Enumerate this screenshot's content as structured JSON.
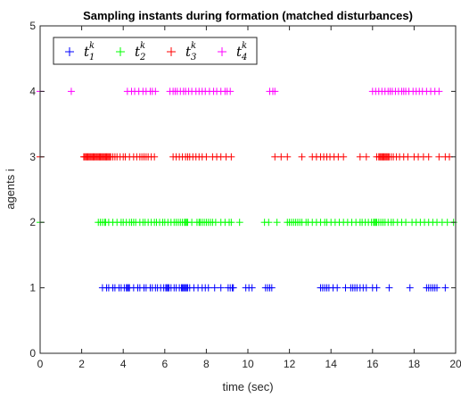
{
  "chart_data": {
    "type": "scatter",
    "title": "Sampling instants during formation (matched disturbances)",
    "xlabel": "time (sec)",
    "ylabel": "agents i",
    "xlim": [
      0,
      20
    ],
    "ylim": [
      0,
      5
    ],
    "xticks": [
      "0",
      "2",
      "4",
      "6",
      "8",
      "10",
      "12",
      "14",
      "16",
      "18",
      "20"
    ],
    "yticks": [
      "0",
      "1",
      "2",
      "3",
      "4",
      "5"
    ],
    "grid": false,
    "legend_position": "top-left",
    "marker": "+",
    "series": [
      {
        "name": "t_1^k",
        "label_base": "t",
        "label_sub": "1",
        "label_sup": "k",
        "color": "#0000ff",
        "y": 1,
        "x": [
          3.0,
          3.2,
          3.3,
          3.5,
          3.6,
          3.8,
          3.9,
          4.05,
          4.15,
          4.2,
          4.25,
          4.3,
          4.5,
          4.7,
          4.8,
          5.0,
          5.1,
          5.3,
          5.4,
          5.55,
          5.65,
          5.8,
          5.95,
          6.05,
          6.1,
          6.15,
          6.2,
          6.3,
          6.45,
          6.55,
          6.7,
          6.8,
          6.85,
          6.9,
          6.95,
          7.0,
          7.05,
          7.1,
          7.2,
          7.4,
          7.6,
          7.8,
          7.95,
          8.1,
          8.4,
          8.7,
          9.05,
          9.15,
          9.25,
          9.3,
          9.9,
          10.05,
          10.2,
          10.85,
          10.95,
          11.05,
          11.15,
          13.5,
          13.6,
          13.7,
          13.8,
          13.9,
          14.1,
          14.3,
          14.7,
          14.95,
          15.05,
          15.15,
          15.25,
          15.4,
          15.55,
          15.7,
          16.0,
          16.2,
          16.8,
          17.8,
          18.6,
          18.7,
          18.8,
          18.9,
          19.0,
          19.1,
          19.5
        ]
      },
      {
        "name": "t_2^k",
        "label_base": "t",
        "label_sub": "2",
        "label_sup": "k",
        "color": "#00ff00",
        "y": 2,
        "x": [
          0.0,
          2.8,
          2.9,
          3.0,
          3.1,
          3.15,
          3.3,
          3.5,
          3.7,
          3.9,
          4.0,
          4.15,
          4.3,
          4.4,
          4.5,
          4.6,
          4.8,
          4.95,
          5.05,
          5.2,
          5.35,
          5.5,
          5.6,
          5.75,
          5.9,
          6.0,
          6.15,
          6.3,
          6.45,
          6.55,
          6.65,
          6.75,
          6.85,
          6.95,
          7.0,
          7.05,
          7.1,
          7.3,
          7.55,
          7.65,
          7.7,
          7.8,
          7.9,
          8.0,
          8.1,
          8.2,
          8.3,
          8.45,
          8.7,
          8.9,
          9.1,
          9.2,
          9.6,
          10.8,
          11.0,
          11.4,
          11.9,
          12.0,
          12.1,
          12.2,
          12.3,
          12.4,
          12.5,
          12.6,
          12.8,
          12.9,
          13.1,
          13.3,
          13.5,
          13.7,
          13.8,
          14.0,
          14.2,
          14.4,
          14.6,
          14.8,
          15.0,
          15.2,
          15.4,
          15.5,
          15.65,
          15.8,
          15.95,
          16.05,
          16.1,
          16.15,
          16.2,
          16.3,
          16.4,
          16.5,
          16.6,
          16.75,
          16.9,
          17.0,
          17.2,
          17.4,
          17.6,
          17.9,
          18.1,
          18.3,
          18.5,
          18.7,
          18.9,
          19.1,
          19.35,
          19.6,
          19.9
        ]
      },
      {
        "name": "t_3^k",
        "label_base": "t",
        "label_sub": "3",
        "label_sup": "k",
        "color": "#ff0000",
        "y": 3,
        "x": [
          0.0,
          2.1,
          2.15,
          2.2,
          2.25,
          2.3,
          2.35,
          2.4,
          2.45,
          2.5,
          2.55,
          2.6,
          2.65,
          2.7,
          2.75,
          2.8,
          2.85,
          2.9,
          2.95,
          3.0,
          3.05,
          3.1,
          3.15,
          3.2,
          3.25,
          3.3,
          3.35,
          3.4,
          3.5,
          3.6,
          3.7,
          3.85,
          4.0,
          4.1,
          4.3,
          4.5,
          4.65,
          4.8,
          4.9,
          5.0,
          5.1,
          5.2,
          5.35,
          5.5,
          6.4,
          6.55,
          6.7,
          6.85,
          7.0,
          7.1,
          7.2,
          7.35,
          7.5,
          7.65,
          7.8,
          8.0,
          8.3,
          8.5,
          8.7,
          8.95,
          9.2,
          11.3,
          11.6,
          11.9,
          12.6,
          13.1,
          13.3,
          13.5,
          13.65,
          13.8,
          13.95,
          14.15,
          14.35,
          14.6,
          15.4,
          15.7,
          16.2,
          16.3,
          16.35,
          16.4,
          16.45,
          16.5,
          16.55,
          16.6,
          16.65,
          16.7,
          16.75,
          16.8,
          16.9,
          17.0,
          17.15,
          17.3,
          17.5,
          17.7,
          18.0,
          18.2,
          18.45,
          18.7,
          19.2,
          19.5,
          19.7
        ]
      },
      {
        "name": "t_4^k",
        "label_base": "t",
        "label_sub": "4",
        "label_sup": "k",
        "color": "#ff00ff",
        "y": 4,
        "x": [
          0.0,
          1.5,
          4.2,
          4.4,
          4.55,
          4.75,
          4.95,
          5.1,
          5.3,
          5.4,
          5.55,
          6.25,
          6.4,
          6.5,
          6.6,
          6.75,
          6.9,
          7.0,
          7.15,
          7.3,
          7.5,
          7.65,
          7.8,
          7.95,
          8.15,
          8.35,
          8.5,
          8.7,
          8.9,
          9.0,
          9.15,
          11.05,
          11.2,
          11.3,
          16.0,
          16.15,
          16.3,
          16.45,
          16.6,
          16.75,
          16.85,
          16.95,
          17.1,
          17.25,
          17.4,
          17.5,
          17.6,
          17.75,
          17.95,
          18.1,
          18.25,
          18.4,
          18.6,
          18.8,
          19.0,
          19.2
        ]
      }
    ]
  }
}
